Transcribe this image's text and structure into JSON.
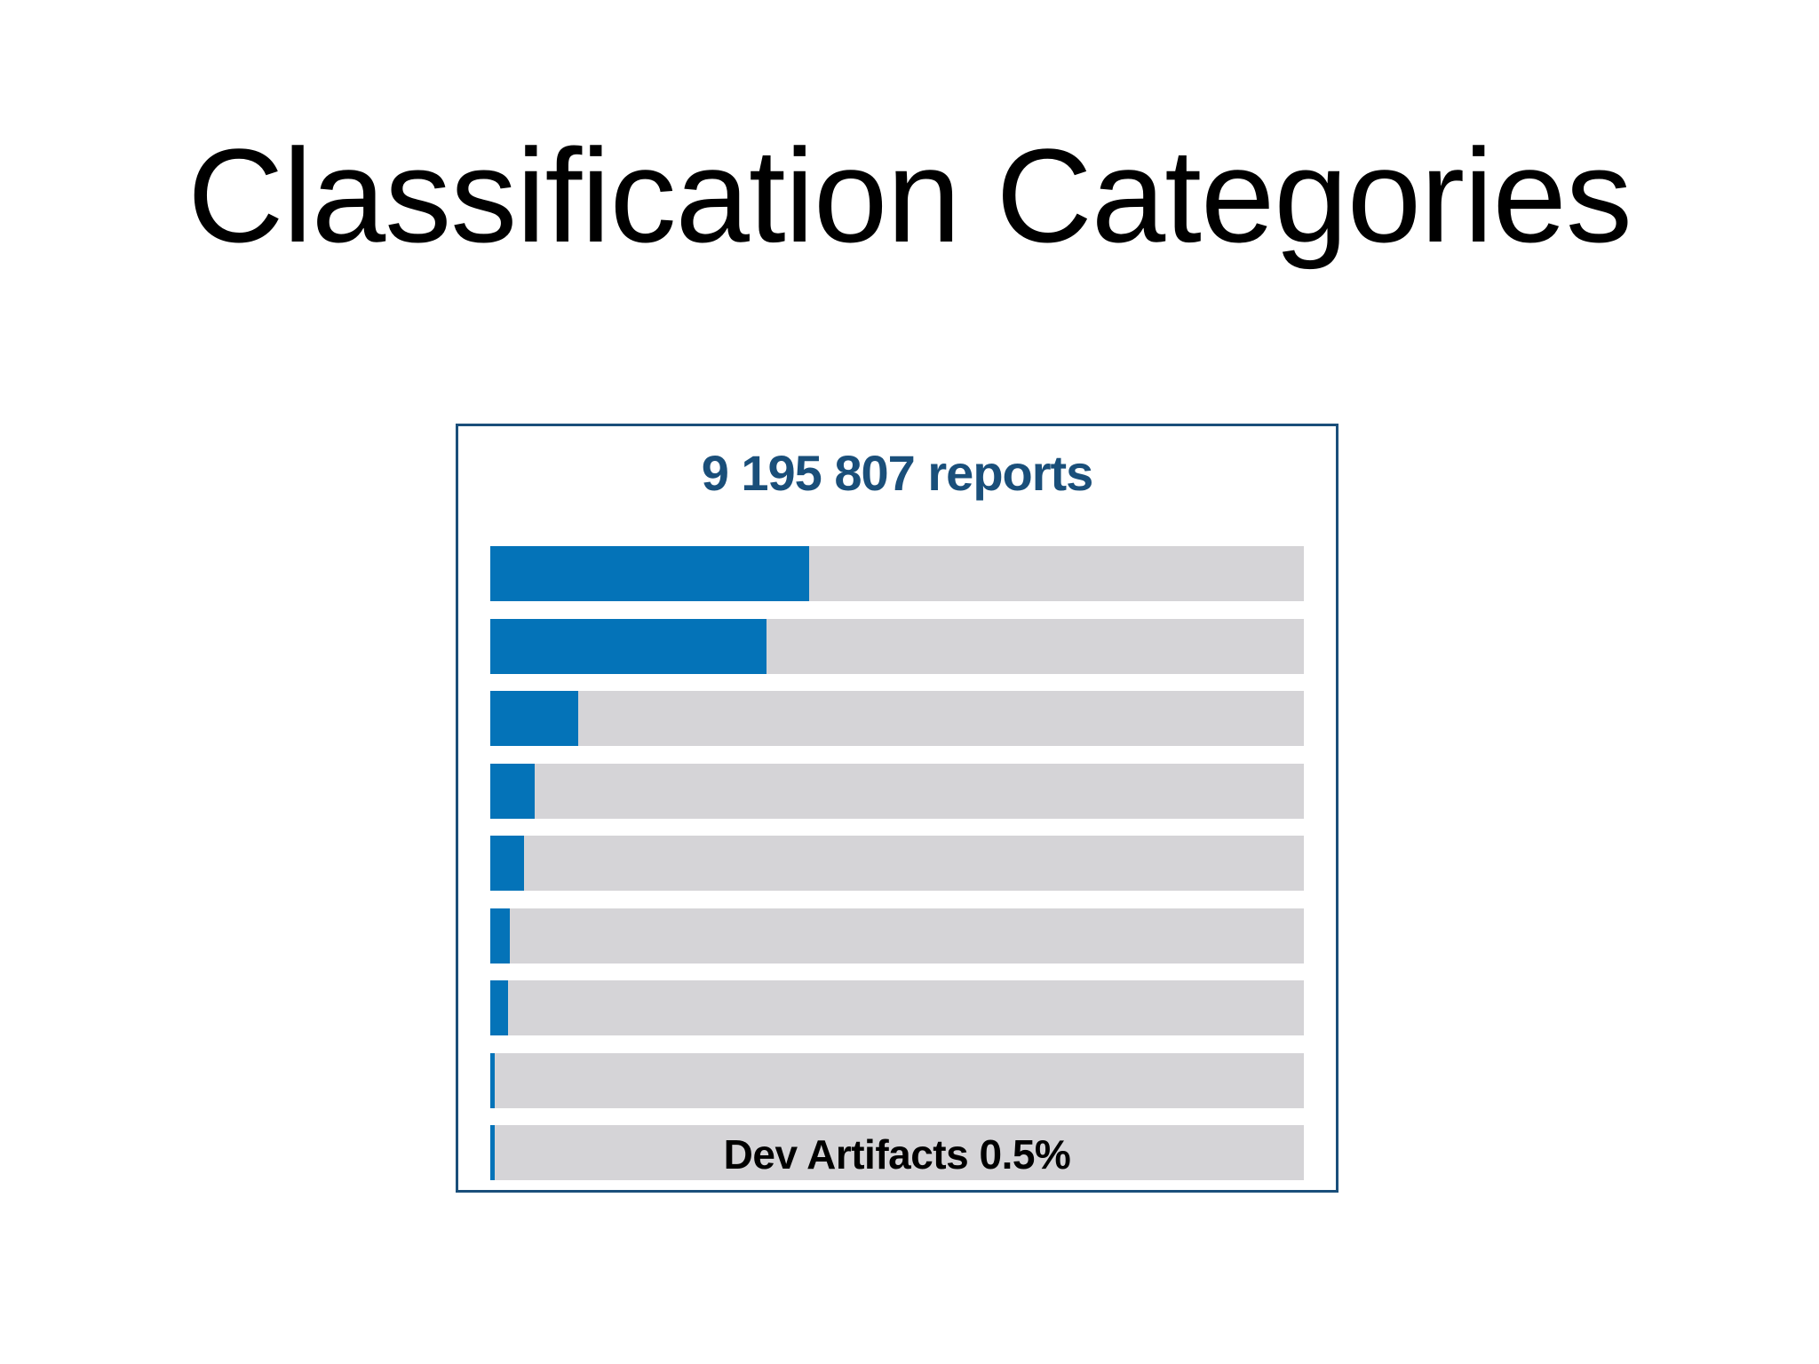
{
  "title": "Classification Categories",
  "colors": {
    "accent": "#0473b8",
    "track": "#d5d4d7",
    "heading": "#1a4f7a",
    "border": "#1a4f7a"
  },
  "chart_data": {
    "type": "bar",
    "orientation": "horizontal",
    "title": "9 195 807 reports",
    "unit": "%",
    "xlim": [
      0,
      100
    ],
    "grid": false,
    "bars": [
      {
        "value": 39.2,
        "label": ""
      },
      {
        "value": 34,
        "label": ""
      },
      {
        "value": 10.8,
        "label": ""
      },
      {
        "value": 5.5,
        "label": ""
      },
      {
        "value": 4.2,
        "label": ""
      },
      {
        "value": 2.4,
        "label": ""
      },
      {
        "value": 2.2,
        "label": ""
      },
      {
        "value": 0.5,
        "label": ""
      },
      {
        "value": 0.5,
        "label": "Dev Artifacts 0.5%"
      }
    ]
  }
}
